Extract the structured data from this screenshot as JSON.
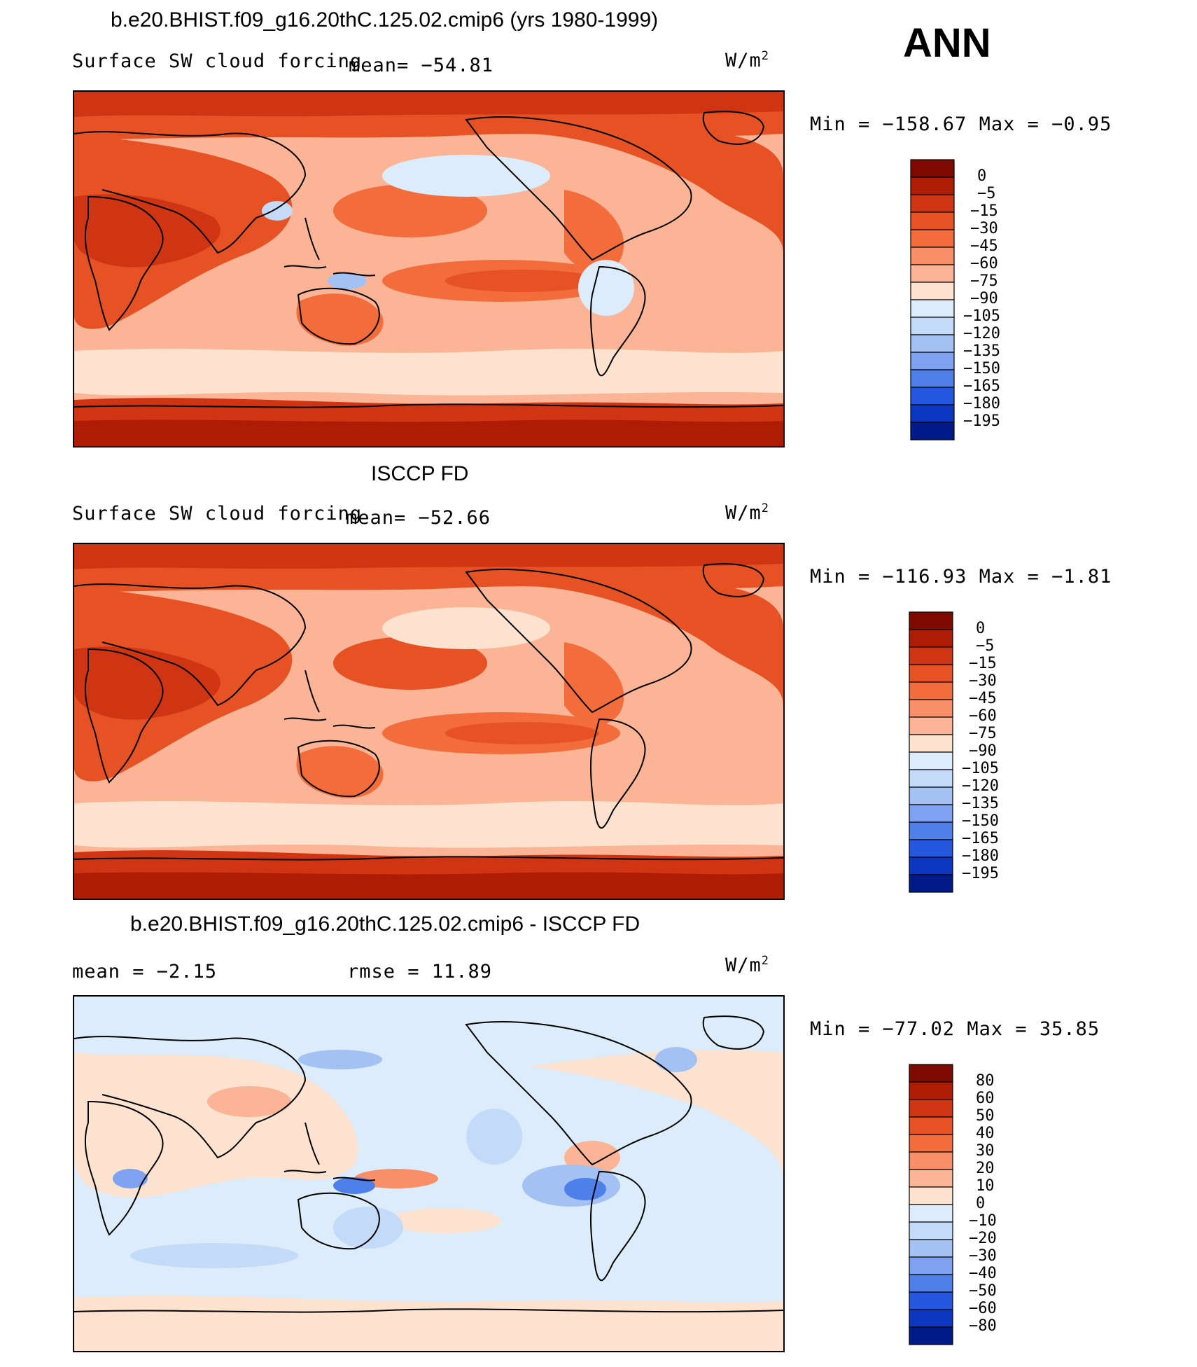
{
  "season": "ANN",
  "colors": {
    "red_scale": [
      "#6b0000",
      "#9e1600",
      "#c72c0a",
      "#e1501f",
      "#f26d3d",
      "#f9916a",
      "#fcb89c",
      "#fde3d3"
    ],
    "neutral": "#fdeedd",
    "blue_scale": [
      "#d7e9fb",
      "#bcd6f8",
      "#9ebdf3",
      "#7a9ef0",
      "#4a7ce8",
      "#2257df",
      "#0b35c0",
      "#03208c",
      "#001060"
    ],
    "coast": "#000000"
  },
  "panels": [
    {
      "title": "b.e20.BHIST.f09_g16.20thC.125.02.cmip6 (yrs 1980-1999)",
      "left_label": "Surface SW cloud forcing",
      "mean_text": "mean= −54.81",
      "units": "W/m",
      "units_exp": "2",
      "minmax": "Min  =  −158.67  Max  =    −0.95",
      "colorbar": {
        "levels": [
          "0",
          "−5",
          "−15",
          "−30",
          "−45",
          "−60",
          "−75",
          "−90",
          "−105",
          "−120",
          "−135",
          "−150",
          "−165",
          "−180",
          "−195"
        ],
        "colors": [
          "#7e0a00",
          "#ae1c06",
          "#cf3512",
          "#e65224",
          "#f26c3c",
          "#f88f68",
          "#fbb496",
          "#fde3cf",
          "#dcecfb",
          "#c3dbf8",
          "#a3c1f3",
          "#7fa2f0",
          "#4f80ea",
          "#2557e0",
          "#0c37c2",
          "#001a88"
        ]
      },
      "field": "model"
    },
    {
      "title": "ISCCP FD",
      "left_label": "Surface SW cloud forcing",
      "mean_text": "mean= −52.66",
      "units": "W/m",
      "units_exp": "2",
      "minmax": "Min  =  −116.93  Max  =    −1.81",
      "colorbar": {
        "levels": [
          "0",
          "−5",
          "−15",
          "−30",
          "−45",
          "−60",
          "−75",
          "−90",
          "−105",
          "−120",
          "−135",
          "−150",
          "−165",
          "−180",
          "−195"
        ],
        "colors": [
          "#7e0a00",
          "#ae1c06",
          "#cf3512",
          "#e65224",
          "#f26c3c",
          "#f88f68",
          "#fbb496",
          "#fde3cf",
          "#dcecfb",
          "#c3dbf8",
          "#a3c1f3",
          "#7fa2f0",
          "#4f80ea",
          "#2557e0",
          "#0c37c2",
          "#001a88"
        ]
      },
      "field": "obs"
    },
    {
      "title": "b.e20.BHIST.f09_g16.20thC.125.02.cmip6 - ISCCP FD",
      "left_label": "mean  =    −2.15",
      "mean_text": "rmse  =    11.89",
      "units": "W/m",
      "units_exp": "2",
      "minmax": "Min  =  −77.02  Max  =    35.85",
      "colorbar": {
        "levels": [
          "80",
          "60",
          "50",
          "40",
          "30",
          "20",
          "10",
          "0",
          "−10",
          "−20",
          "−30",
          "−40",
          "−50",
          "−60",
          "−80"
        ],
        "colors": [
          "#7e0a00",
          "#ae1c06",
          "#cf3512",
          "#e65224",
          "#f26c3c",
          "#f88f68",
          "#fbb496",
          "#fde3cf",
          "#dcecfb",
          "#c3dbf8",
          "#a3c1f3",
          "#7fa2f0",
          "#4f80ea",
          "#2557e0",
          "#0c37c2",
          "#001a88"
        ]
      },
      "field": "diff"
    }
  ]
}
